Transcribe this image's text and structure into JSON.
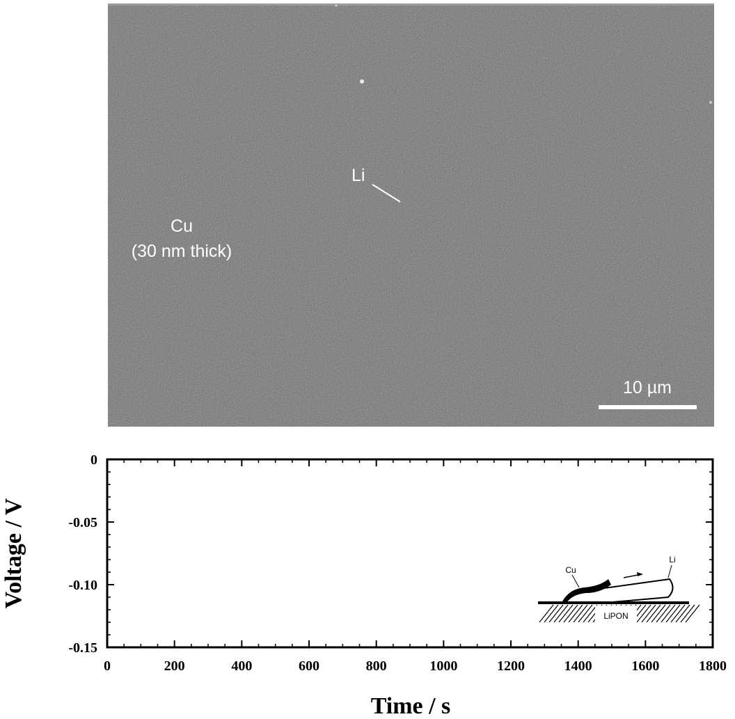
{
  "micrograph": {
    "label_cu": "Cu",
    "label_cu_thickness": "(30 nm thick)",
    "label_li": "Li",
    "scale_bar_label": "10 µm"
  },
  "inset": {
    "label_cu": "Cu",
    "label_li": "Li",
    "label_lipon": "LiPON"
  },
  "chart_data": {
    "type": "line",
    "title": "",
    "xlabel": "Time / s",
    "ylabel": "Voltage / V",
    "xlim": [
      0,
      1800
    ],
    "ylim": [
      -0.15,
      0
    ],
    "x_ticks": [
      0,
      200,
      400,
      600,
      800,
      1000,
      1200,
      1400,
      1600,
      1800
    ],
    "y_ticks": [
      0,
      -0.05,
      -0.1,
      -0.15
    ],
    "y_tick_labels": [
      "0",
      "-0.05",
      "-0.10",
      "-0.15"
    ],
    "grid": false,
    "series": []
  }
}
